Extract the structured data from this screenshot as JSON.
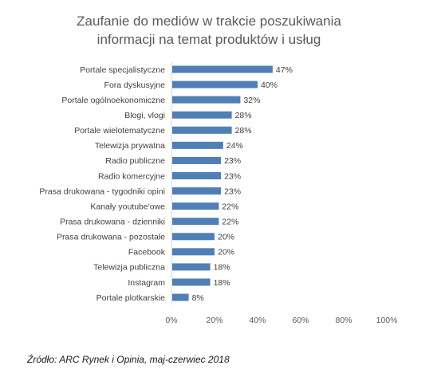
{
  "chart_data": {
    "type": "bar",
    "orientation": "horizontal",
    "title_lines": [
      "Zaufanie do mediów w trakcie poszukiwania",
      "informacji na temat produktów i usług"
    ],
    "categories": [
      "Portale specjalistyczne",
      "Fora dyskusyjne",
      "Portale ogólnoekonomiczne",
      "Blogi, vlogi",
      "Portale wielotematyczne",
      "Telewizja prywatna",
      "Radio publiczne",
      "Radio komercyjne",
      "Prasa drukowana - tygodniki opini",
      "Kanały youtube'owe",
      "Prasa drukowana - dzienniki",
      "Prasa drukowana - pozostałe",
      "Facebook",
      "Telewizja publiczna",
      "Instagram",
      "Portale plotkarskie"
    ],
    "values": [
      47,
      40,
      32,
      28,
      28,
      24,
      23,
      23,
      23,
      22,
      22,
      20,
      20,
      18,
      18,
      8
    ],
    "value_labels": [
      "47%",
      "40%",
      "32%",
      "28%",
      "28%",
      "24%",
      "23%",
      "23%",
      "23%",
      "22%",
      "22%",
      "20%",
      "20%",
      "18%",
      "18%",
      "8%"
    ],
    "xlim": [
      0,
      100
    ],
    "x_ticks": [
      0,
      20,
      40,
      60,
      80,
      100
    ],
    "x_tick_labels": [
      "0%",
      "20%",
      "40%",
      "60%",
      "80%",
      "100%"
    ],
    "grid": false,
    "legend": "none",
    "bar_color": "#4f7fb5"
  },
  "source": "Źródło: ARC Rynek i Opinia, maj-czerwiec 2018"
}
